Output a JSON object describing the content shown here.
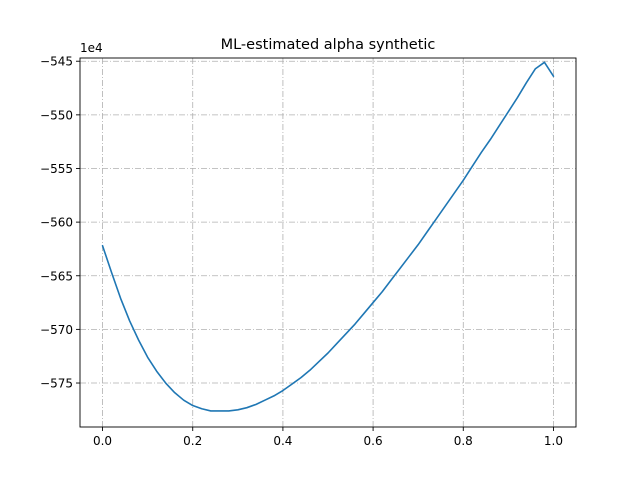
{
  "chart_data": {
    "type": "line",
    "title": "ML-estimated alpha synthetic",
    "xlabel": "",
    "ylabel": "",
    "y_offset_label": "1e4",
    "y_scale_factor": 10000,
    "xlim": [
      -0.05,
      1.05
    ],
    "ylim": [
      -579.1,
      -544.7
    ],
    "x_ticks": [
      0.0,
      0.2,
      0.4,
      0.6,
      0.8,
      1.0
    ],
    "x_tick_labels": [
      "0.0",
      "0.2",
      "0.4",
      "0.6",
      "0.8",
      "1.0"
    ],
    "y_ticks": [
      -575,
      -570,
      -565,
      -560,
      -555,
      -550,
      -545
    ],
    "y_tick_labels": [
      "−575",
      "−570",
      "−565",
      "−560",
      "−555",
      "−550",
      "−545"
    ],
    "grid": true,
    "series": [
      {
        "color": "#1f77b4",
        "x": [
          0.0,
          0.02,
          0.04,
          0.06,
          0.08,
          0.1,
          0.12,
          0.14,
          0.16,
          0.18,
          0.2,
          0.22,
          0.24,
          0.26,
          0.28,
          0.3,
          0.32,
          0.34,
          0.36,
          0.38,
          0.4,
          0.42,
          0.44,
          0.46,
          0.48,
          0.5,
          0.52,
          0.54,
          0.56,
          0.58,
          0.6,
          0.62,
          0.64,
          0.66,
          0.68,
          0.7,
          0.72,
          0.74,
          0.76,
          0.78,
          0.8,
          0.82,
          0.84,
          0.86,
          0.88,
          0.9,
          0.92,
          0.94,
          0.96,
          0.98,
          1.0
        ],
        "y": [
          -562.2,
          -564.7,
          -567.1,
          -569.2,
          -571.0,
          -572.6,
          -573.9,
          -575.0,
          -575.9,
          -576.6,
          -577.1,
          -577.4,
          -577.6,
          -577.6,
          -577.6,
          -577.5,
          -577.3,
          -577.0,
          -576.6,
          -576.2,
          -575.7,
          -575.1,
          -574.5,
          -573.8,
          -573.0,
          -572.2,
          -571.3,
          -570.4,
          -569.5,
          -568.5,
          -567.5,
          -566.5,
          -565.4,
          -564.3,
          -563.2,
          -562.1,
          -560.9,
          -559.7,
          -558.5,
          -557.3,
          -556.1,
          -554.8,
          -553.5,
          -552.3,
          -551.0,
          -549.7,
          -548.4,
          -547.0,
          -545.7,
          -545.1,
          -546.4
        ]
      }
    ]
  }
}
